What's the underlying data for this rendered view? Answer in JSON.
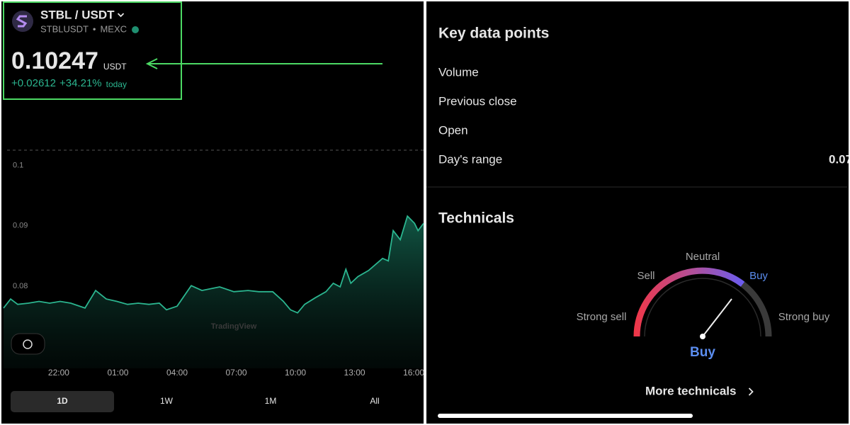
{
  "header": {
    "pair": "STBL / USDT",
    "symbol": "STBLUSDT",
    "exchange": "MEXC",
    "price": "0.10247",
    "currency": "USDT",
    "change": "+0.02612",
    "change_percent": "+34.21%",
    "period": "today"
  },
  "chart_data": {
    "type": "line",
    "color": "#2bb58f",
    "x": [
      19.2,
      19.56,
      19.92,
      20.46,
      21.0,
      21.54,
      22.07,
      22.61,
      23.33,
      23.87,
      24.41,
      24.95,
      25.49,
      26.03,
      26.57,
      27.1,
      27.46,
      28.0,
      28.72,
      29.26,
      30.16,
      30.88,
      31.6,
      32.14,
      32.85,
      33.39,
      33.75,
      34.11,
      34.47,
      35.01,
      35.55,
      35.92,
      36.27,
      36.56,
      36.81,
      37.17,
      37.71,
      38.42,
      38.71,
      38.96,
      39.32,
      39.68,
      40.04,
      40.22,
      40.5
    ],
    "values": [
      0.0764,
      0.0779,
      0.077,
      0.0772,
      0.0775,
      0.0772,
      0.0775,
      0.0772,
      0.0764,
      0.0793,
      0.0779,
      0.0775,
      0.077,
      0.0772,
      0.077,
      0.0772,
      0.0761,
      0.0767,
      0.0801,
      0.0793,
      0.0799,
      0.0791,
      0.0793,
      0.0791,
      0.0791,
      0.0775,
      0.0761,
      0.0756,
      0.077,
      0.0781,
      0.0791,
      0.0805,
      0.0799,
      0.0828,
      0.0805,
      0.0816,
      0.0826,
      0.0846,
      0.0842,
      0.0892,
      0.0877,
      0.0916,
      0.0904,
      0.0892,
      0.0904
    ],
    "xlim": [
      19.2,
      40.5
    ],
    "ylim": [
      0.0676,
      0.1025
    ],
    "xticks": [
      {
        "value": 22,
        "label": "22:00"
      },
      {
        "value": 25,
        "label": "01:00"
      },
      {
        "value": 28,
        "label": "04:00"
      },
      {
        "value": 31,
        "label": "07:00"
      },
      {
        "value": 34,
        "label": "10:00"
      },
      {
        "value": 37,
        "label": "13:00"
      },
      {
        "value": 40,
        "label": "16:00"
      }
    ],
    "yticks": [
      0.1,
      0.09,
      0.08
    ],
    "grid": false,
    "watermark": "TradingView"
  },
  "timeframes": [
    "1D",
    "1W",
    "1M",
    "All"
  ],
  "selected_timeframe": "1D",
  "key_data": {
    "title": "Key data points",
    "rows": [
      {
        "label": "Volume"
      },
      {
        "label": "Previous close"
      },
      {
        "label": "Open"
      },
      {
        "label": "Day's range",
        "value": "0.07"
      }
    ]
  },
  "technicals": {
    "title": "Technicals",
    "labels": [
      "Strong sell",
      "Sell",
      "Neutral",
      "Buy",
      "Strong buy"
    ],
    "rating": "Buy",
    "more": "More technicals"
  }
}
